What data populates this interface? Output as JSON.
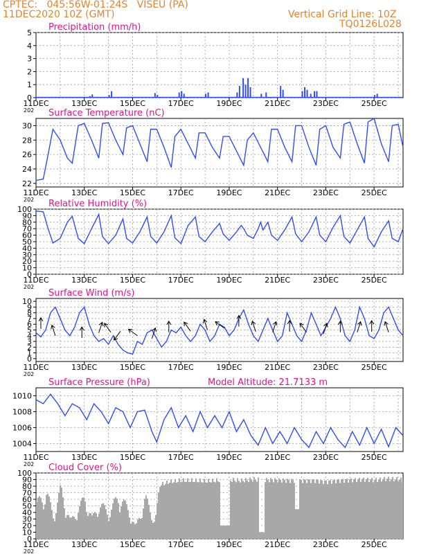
{
  "header": {
    "line1": "CPTEC:   045:56W-01:24S   VISEU (PA)",
    "line2": "11DEC2020 10Z (GMT)",
    "right1": "Vertical Grid Line: 10Z",
    "right2": "TQ0126L028"
  },
  "colors": {
    "line": "#2e4bff",
    "title": "#e4128a",
    "header": "#e8822a",
    "cloud": "#a8a8a8"
  },
  "x_axis": {
    "tick_labels": [
      "11DEC",
      "13DEC",
      "15DEC",
      "17DEC",
      "19DEC",
      "21DEC",
      "23DEC",
      "25DEC"
    ],
    "year_stub": "202"
  },
  "chart_data": [
    {
      "id": "precip",
      "type": "bar",
      "title": "Precipitation (mm/h)",
      "ylim": [
        0,
        5
      ],
      "yticks": [
        0,
        1,
        2,
        3,
        4,
        5
      ],
      "bars": [
        [
          2.2,
          0.12
        ],
        [
          2.3,
          0.25
        ],
        [
          3.0,
          0.2
        ],
        [
          3.1,
          0.5
        ],
        [
          4.9,
          0.35
        ],
        [
          5.0,
          0.2
        ],
        [
          5.9,
          0.4
        ],
        [
          6.0,
          0.5
        ],
        [
          6.1,
          0.3
        ],
        [
          7.0,
          0.3
        ],
        [
          7.1,
          0.4
        ],
        [
          8.3,
          0.4
        ],
        [
          8.4,
          0.9
        ],
        [
          8.55,
          1.5
        ],
        [
          8.65,
          1.0
        ],
        [
          8.75,
          1.5
        ],
        [
          8.85,
          0.8
        ],
        [
          9.3,
          0.3
        ],
        [
          9.5,
          0.4
        ],
        [
          10.1,
          0.9
        ],
        [
          10.2,
          0.6
        ],
        [
          11.0,
          0.5
        ],
        [
          11.1,
          0.8
        ],
        [
          11.2,
          0.6
        ],
        [
          11.35,
          0.3
        ],
        [
          11.5,
          0.5
        ],
        [
          11.6,
          0.5
        ],
        [
          14.0,
          0.2
        ],
        [
          14.1,
          0.3
        ]
      ],
      "grid": true
    },
    {
      "id": "temp",
      "type": "line",
      "title": "Surface Temperature (nC)",
      "ylim": [
        21.5,
        31
      ],
      "yticks": [
        22,
        24,
        26,
        28,
        30
      ],
      "points": [
        [
          0,
          22.4
        ],
        [
          0.3,
          22.6
        ],
        [
          0.5,
          26
        ],
        [
          0.7,
          29.5
        ],
        [
          1.0,
          28
        ],
        [
          1.3,
          25.5
        ],
        [
          1.5,
          24.8
        ],
        [
          1.75,
          30
        ],
        [
          2.0,
          30.3
        ],
        [
          2.3,
          28
        ],
        [
          2.6,
          25.5
        ],
        [
          2.75,
          30.3
        ],
        [
          3.0,
          30.4
        ],
        [
          3.3,
          28
        ],
        [
          3.6,
          26
        ],
        [
          3.75,
          29.7
        ],
        [
          4.0,
          30
        ],
        [
          4.3,
          27.5
        ],
        [
          4.6,
          25
        ],
        [
          4.75,
          29.5
        ],
        [
          5.0,
          29.5
        ],
        [
          5.3,
          27
        ],
        [
          5.6,
          24.2
        ],
        [
          5.75,
          28.5
        ],
        [
          6.0,
          29.5
        ],
        [
          6.3,
          27.5
        ],
        [
          6.6,
          25.5
        ],
        [
          6.75,
          29
        ],
        [
          7.0,
          29
        ],
        [
          7.3,
          27
        ],
        [
          7.6,
          25.5
        ],
        [
          7.75,
          28.5
        ],
        [
          8.0,
          28.5
        ],
        [
          8.3,
          26.5
        ],
        [
          8.6,
          24.5
        ],
        [
          8.75,
          28
        ],
        [
          9.0,
          29
        ],
        [
          9.3,
          27
        ],
        [
          9.6,
          25
        ],
        [
          9.75,
          29.5
        ],
        [
          10.0,
          29.5
        ],
        [
          10.3,
          27
        ],
        [
          10.6,
          25
        ],
        [
          10.75,
          30
        ],
        [
          11.0,
          30
        ],
        [
          11.3,
          27
        ],
        [
          11.6,
          24.5
        ],
        [
          11.75,
          29.5
        ],
        [
          12.0,
          30
        ],
        [
          12.3,
          27
        ],
        [
          12.6,
          25.5
        ],
        [
          12.75,
          30.2
        ],
        [
          13.0,
          30.5
        ],
        [
          13.3,
          27.5
        ],
        [
          13.6,
          24.8
        ],
        [
          13.75,
          30.5
        ],
        [
          14.0,
          31
        ],
        [
          14.3,
          27.5
        ],
        [
          14.6,
          25
        ],
        [
          14.75,
          30
        ],
        [
          15.0,
          30.2
        ],
        [
          15.2,
          27
        ]
      ],
      "grid": true
    },
    {
      "id": "rh",
      "type": "line",
      "title": "Relative Humidity (%)",
      "ylim": [
        0,
        100
      ],
      "yticks": [
        0,
        10,
        20,
        30,
        40,
        50,
        60,
        70,
        80,
        90,
        100
      ],
      "points": [
        [
          0,
          97
        ],
        [
          0.3,
          96
        ],
        [
          0.5,
          70
        ],
        [
          0.7,
          48
        ],
        [
          1.0,
          55
        ],
        [
          1.3,
          80
        ],
        [
          1.5,
          89
        ],
        [
          1.75,
          55
        ],
        [
          2.0,
          47
        ],
        [
          2.3,
          70
        ],
        [
          2.6,
          92
        ],
        [
          2.75,
          58
        ],
        [
          3.0,
          47
        ],
        [
          3.3,
          60
        ],
        [
          3.6,
          85
        ],
        [
          3.75,
          55
        ],
        [
          4.0,
          48
        ],
        [
          4.3,
          65
        ],
        [
          4.6,
          88
        ],
        [
          4.75,
          58
        ],
        [
          5.0,
          48
        ],
        [
          5.3,
          65
        ],
        [
          5.6,
          90
        ],
        [
          5.75,
          56
        ],
        [
          6.0,
          47
        ],
        [
          6.3,
          75
        ],
        [
          6.6,
          88
        ],
        [
          6.75,
          58
        ],
        [
          7.0,
          50
        ],
        [
          7.3,
          65
        ],
        [
          7.6,
          78
        ],
        [
          7.75,
          62
        ],
        [
          8.0,
          52
        ],
        [
          8.3,
          65
        ],
        [
          8.5,
          75
        ],
        [
          8.6,
          70
        ],
        [
          8.75,
          60
        ],
        [
          9.0,
          55
        ],
        [
          9.2,
          70
        ],
        [
          9.3,
          80
        ],
        [
          9.4,
          68
        ],
        [
          9.6,
          80
        ],
        [
          9.75,
          60
        ],
        [
          10.0,
          52
        ],
        [
          10.3,
          68
        ],
        [
          10.6,
          88
        ],
        [
          10.75,
          62
        ],
        [
          11.0,
          50
        ],
        [
          11.3,
          65
        ],
        [
          11.6,
          88
        ],
        [
          11.75,
          60
        ],
        [
          12.0,
          50
        ],
        [
          12.3,
          72
        ],
        [
          12.6,
          90
        ],
        [
          12.75,
          58
        ],
        [
          13.0,
          48
        ],
        [
          13.3,
          68
        ],
        [
          13.6,
          88
        ],
        [
          13.75,
          55
        ],
        [
          14.0,
          42
        ],
        [
          14.3,
          65
        ],
        [
          14.6,
          82
        ],
        [
          14.75,
          55
        ],
        [
          15.0,
          50
        ],
        [
          15.2,
          70
        ]
      ],
      "grid": true
    },
    {
      "id": "wind",
      "type": "line",
      "title": "Surface Wind (m/s)",
      "ylim": [
        -0.5,
        10.5
      ],
      "yticks": [
        0,
        1,
        2,
        3,
        4,
        5,
        6,
        7,
        8,
        9,
        10
      ],
      "points": [
        [
          0,
          4.5
        ],
        [
          0.2,
          3.8
        ],
        [
          0.4,
          5
        ],
        [
          0.6,
          8
        ],
        [
          0.8,
          9
        ],
        [
          1.0,
          7
        ],
        [
          1.2,
          5
        ],
        [
          1.4,
          4
        ],
        [
          1.6,
          5.5
        ],
        [
          1.8,
          8
        ],
        [
          2.0,
          9
        ],
        [
          2.2,
          6
        ],
        [
          2.4,
          4
        ],
        [
          2.6,
          3
        ],
        [
          2.8,
          3.5
        ],
        [
          3.0,
          2.5
        ],
        [
          3.2,
          4
        ],
        [
          3.4,
          2.5
        ],
        [
          3.6,
          1.5
        ],
        [
          3.8,
          1
        ],
        [
          4.0,
          0.8
        ],
        [
          4.2,
          3
        ],
        [
          4.4,
          2.5
        ],
        [
          4.6,
          4.5
        ],
        [
          4.8,
          5
        ],
        [
          5.0,
          3.5
        ],
        [
          5.2,
          2
        ],
        [
          5.4,
          3
        ],
        [
          5.6,
          5
        ],
        [
          5.8,
          4.5
        ],
        [
          6.0,
          5.5
        ],
        [
          6.2,
          4
        ],
        [
          6.4,
          3
        ],
        [
          6.6,
          4
        ],
        [
          6.8,
          6
        ],
        [
          7.0,
          5
        ],
        [
          7.2,
          3
        ],
        [
          7.4,
          4
        ],
        [
          7.6,
          6
        ],
        [
          7.8,
          5.5
        ],
        [
          8.0,
          4
        ],
        [
          8.2,
          5
        ],
        [
          8.4,
          7
        ],
        [
          8.6,
          8.5
        ],
        [
          8.8,
          6
        ],
        [
          9.0,
          4
        ],
        [
          9.2,
          3
        ],
        [
          9.4,
          5
        ],
        [
          9.6,
          7
        ],
        [
          9.8,
          5
        ],
        [
          10.0,
          3
        ],
        [
          10.2,
          4
        ],
        [
          10.4,
          8
        ],
        [
          10.6,
          6
        ],
        [
          10.8,
          4
        ],
        [
          11.0,
          3
        ],
        [
          11.2,
          5
        ],
        [
          11.4,
          8
        ],
        [
          11.6,
          6
        ],
        [
          11.8,
          4
        ],
        [
          12.0,
          5.5
        ],
        [
          12.2,
          7
        ],
        [
          12.4,
          9
        ],
        [
          12.6,
          7
        ],
        [
          12.8,
          4
        ],
        [
          13.0,
          3
        ],
        [
          13.2,
          5
        ],
        [
          13.4,
          9
        ],
        [
          13.6,
          7
        ],
        [
          13.8,
          4
        ],
        [
          14.0,
          3.5
        ],
        [
          14.2,
          5
        ],
        [
          14.4,
          8
        ],
        [
          14.6,
          9
        ],
        [
          14.8,
          7
        ],
        [
          15.0,
          5
        ],
        [
          15.2,
          4
        ]
      ],
      "grid": true
    },
    {
      "id": "pres",
      "type": "line",
      "title": "Surface Pressure (hPa)",
      "extra_label": "Model Altitude: 21.7133 m",
      "ylim": [
        1003,
        1011
      ],
      "yticks": [
        1004,
        1006,
        1008,
        1010
      ],
      "points": [
        [
          0,
          1009.5
        ],
        [
          0.3,
          1009
        ],
        [
          0.6,
          1010.2
        ],
        [
          0.9,
          1009
        ],
        [
          1.2,
          1007.5
        ],
        [
          1.5,
          1009
        ],
        [
          1.8,
          1008.5
        ],
        [
          2.1,
          1007
        ],
        [
          2.4,
          1009
        ],
        [
          2.7,
          1008
        ],
        [
          3.0,
          1006.5
        ],
        [
          3.3,
          1008.5
        ],
        [
          3.6,
          1008
        ],
        [
          3.9,
          1006
        ],
        [
          4.2,
          1008
        ],
        [
          4.5,
          1008.2
        ],
        [
          4.8,
          1005.5
        ],
        [
          5.0,
          1004.2
        ],
        [
          5.3,
          1007
        ],
        [
          5.6,
          1008.5
        ],
        [
          5.9,
          1006
        ],
        [
          6.2,
          1007.5
        ],
        [
          6.5,
          1005.5
        ],
        [
          6.8,
          1008
        ],
        [
          7.1,
          1006
        ],
        [
          7.4,
          1007.5
        ],
        [
          7.7,
          1006
        ],
        [
          8.0,
          1008
        ],
        [
          8.3,
          1005.5
        ],
        [
          8.6,
          1007
        ],
        [
          8.9,
          1005
        ],
        [
          9.2,
          1003.8
        ],
        [
          9.5,
          1006
        ],
        [
          9.8,
          1004
        ],
        [
          10.1,
          1005.5
        ],
        [
          10.4,
          1004
        ],
        [
          10.7,
          1006
        ],
        [
          11.0,
          1004.5
        ],
        [
          11.3,
          1003.5
        ],
        [
          11.6,
          1005.5
        ],
        [
          11.9,
          1004
        ],
        [
          12.2,
          1006
        ],
        [
          12.5,
          1004.5
        ],
        [
          12.8,
          1003.5
        ],
        [
          13.1,
          1005.5
        ],
        [
          13.4,
          1003.8
        ],
        [
          13.7,
          1006
        ],
        [
          14.0,
          1004
        ],
        [
          14.3,
          1005.8
        ],
        [
          14.6,
          1003.6
        ],
        [
          14.9,
          1006
        ],
        [
          15.2,
          1005
        ]
      ],
      "grid": true
    },
    {
      "id": "cloud",
      "type": "bar",
      "title": "Cloud Cover (%)",
      "ylim": [
        0,
        100
      ],
      "yticks": [
        0,
        10,
        20,
        30,
        40,
        50,
        60,
        70,
        80,
        90,
        100
      ],
      "profile": [
        [
          0,
          60
        ],
        [
          0.4,
          80
        ],
        [
          0.7,
          40
        ],
        [
          1.0,
          85
        ],
        [
          1.4,
          30
        ],
        [
          1.7,
          50
        ],
        [
          2.0,
          70
        ],
        [
          2.3,
          35
        ],
        [
          2.6,
          60
        ],
        [
          3.0,
          45
        ],
        [
          3.4,
          75
        ],
        [
          3.8,
          50
        ],
        [
          4.1,
          20
        ],
        [
          4.5,
          70
        ],
        [
          4.9,
          30
        ],
        [
          5.1,
          85
        ],
        [
          5.5,
          90
        ],
        [
          6.0,
          92
        ],
        [
          6.5,
          92
        ],
        [
          7.0,
          91
        ],
        [
          7.5,
          92
        ],
        [
          8.0,
          93
        ],
        [
          8.5,
          92
        ],
        [
          9.0,
          94
        ],
        [
          9.5,
          93
        ],
        [
          10.0,
          93
        ],
        [
          10.5,
          92
        ],
        [
          11.0,
          92
        ],
        [
          11.5,
          92
        ],
        [
          12.0,
          90
        ],
        [
          12.5,
          92
        ],
        [
          13.0,
          93
        ],
        [
          13.5,
          94
        ],
        [
          14.0,
          93
        ],
        [
          14.5,
          95
        ],
        [
          15.0,
          94
        ],
        [
          15.2,
          92
        ]
      ],
      "grid": true
    }
  ]
}
